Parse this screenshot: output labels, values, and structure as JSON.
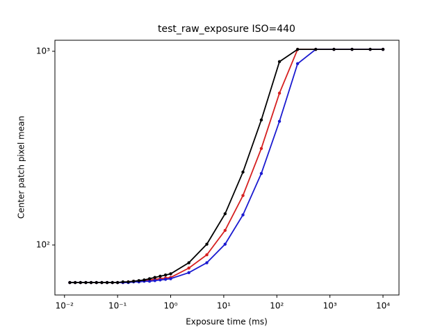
{
  "chart_data": {
    "type": "line",
    "title": "test_raw_exposure ISO=440",
    "x_label": "Exposure time (ms)",
    "y_label": "Center patch pixel mean",
    "log_x": true,
    "log_y": true,
    "x": [
      0.0126,
      0.0159,
      0.02,
      0.0252,
      0.0317,
      0.04,
      0.0504,
      0.0635,
      0.08,
      0.1,
      0.126,
      0.159,
      0.2,
      0.252,
      0.317,
      0.4,
      0.504,
      0.635,
      0.8,
      1.0,
      2.2,
      4.8,
      10.6,
      23,
      51,
      112,
      246,
      540,
      1190,
      2610,
      5740,
      10000
    ],
    "series": [
      {
        "name": "red",
        "color": "#d62020",
        "values": [
          64,
          64,
          64,
          64,
          64,
          64,
          64,
          64,
          64,
          64,
          64,
          64.5,
          65,
          65,
          65.5,
          66,
          66.5,
          67,
          67.5,
          68,
          76,
          89,
          119,
          180,
          315,
          608,
          1023,
          1023,
          1023,
          1023,
          1023,
          1023
        ]
      },
      {
        "name": "blue",
        "color": "#1a1ad0",
        "values": [
          64,
          64,
          64,
          64,
          64,
          64,
          64,
          64,
          64,
          64,
          64,
          64,
          64.5,
          64.5,
          65,
          65,
          65.5,
          66,
          66.5,
          67,
          72,
          81,
          101,
          143,
          234,
          435,
          863,
          1023,
          1023,
          1023,
          1023,
          1023
        ]
      },
      {
        "name": "black",
        "color": "#000000",
        "values": [
          64,
          64,
          64,
          64,
          64,
          64,
          64,
          64,
          64,
          64,
          64.5,
          64.5,
          65,
          65.5,
          66,
          67,
          68,
          69,
          70,
          71,
          81,
          101,
          145,
          238,
          442,
          884,
          1023,
          1023,
          1023,
          1023,
          1023,
          1023
        ]
      }
    ],
    "xlim": [
      0.0066,
      20000
    ],
    "ylim": [
      55.2,
      1140
    ],
    "xticks": [
      {
        "value": 0.01,
        "label": "10⁻²"
      },
      {
        "value": 0.1,
        "label": "10⁻¹"
      },
      {
        "value": 1,
        "label": "10⁰"
      },
      {
        "value": 10,
        "label": "10¹"
      },
      {
        "value": 100,
        "label": "10²"
      },
      {
        "value": 1000,
        "label": "10³"
      },
      {
        "value": 10000,
        "label": "10⁴"
      }
    ],
    "yticks": [
      {
        "value": 100,
        "label": "10²"
      },
      {
        "value": 1000,
        "label": "10³"
      }
    ]
  }
}
